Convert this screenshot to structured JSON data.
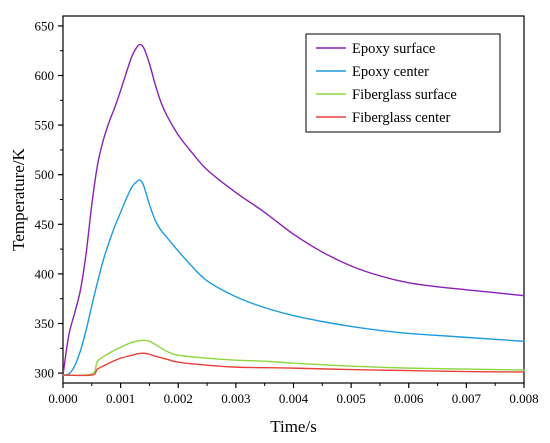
{
  "chart_data": {
    "type": "line",
    "title": "",
    "xlabel": "Time/s",
    "ylabel": "Temperature/K",
    "xlim": [
      0,
      0.008
    ],
    "ylim": [
      290,
      660
    ],
    "grid": false,
    "legend_position": "top-right",
    "x_ticks": [
      {
        "value": 0,
        "label": "0.000"
      },
      {
        "value": 0.001,
        "label": "0.001"
      },
      {
        "value": 0.002,
        "label": "0.002"
      },
      {
        "value": 0.003,
        "label": "0.003"
      },
      {
        "value": 0.004,
        "label": "0.004"
      },
      {
        "value": 0.005,
        "label": "0.005"
      },
      {
        "value": 0.006,
        "label": "0.006"
      },
      {
        "value": 0.007,
        "label": "0.007"
      },
      {
        "value": 0.008,
        "label": "0.008"
      }
    ],
    "y_ticks": [
      {
        "value": 300,
        "label": "300"
      },
      {
        "value": 350,
        "label": "350"
      },
      {
        "value": 400,
        "label": "400"
      },
      {
        "value": 450,
        "label": "450"
      },
      {
        "value": 500,
        "label": "500"
      },
      {
        "value": 550,
        "label": "550"
      },
      {
        "value": 600,
        "label": "600"
      },
      {
        "value": 650,
        "label": "650"
      }
    ],
    "series": [
      {
        "name": "Epoxy surface",
        "color": "#8B1FB8",
        "x": [
          0,
          0.0001,
          0.0002,
          0.0003,
          0.0004,
          0.0005,
          0.0006,
          0.0007,
          0.0008,
          0.0009,
          0.001,
          0.0011,
          0.0012,
          0.0013,
          0.00135,
          0.0014,
          0.0015,
          0.0016,
          0.0017,
          0.0018,
          0.002,
          0.0022,
          0.0025,
          0.003,
          0.0035,
          0.004,
          0.0045,
          0.005,
          0.0055,
          0.006,
          0.0065,
          0.007,
          0.0075,
          0.008
        ],
        "y": [
          298,
          338,
          360,
          383,
          420,
          470,
          510,
          535,
          553,
          568,
          585,
          603,
          620,
          630,
          631,
          628,
          612,
          591,
          573,
          560,
          540,
          525,
          505,
          482,
          462,
          440,
          422,
          408,
          398,
          391,
          387,
          384,
          381,
          378
        ]
      },
      {
        "name": "Epoxy center",
        "color": "#1E9BE0",
        "x": [
          0,
          0.0001,
          0.0002,
          0.0003,
          0.0004,
          0.0005,
          0.0006,
          0.0007,
          0.0008,
          0.0009,
          0.001,
          0.0011,
          0.0012,
          0.0013,
          0.00135,
          0.0014,
          0.0015,
          0.0016,
          0.0017,
          0.0018,
          0.002,
          0.0022,
          0.0025,
          0.003,
          0.0035,
          0.004,
          0.0045,
          0.005,
          0.0055,
          0.006,
          0.0065,
          0.007,
          0.0075,
          0.008
        ],
        "y": [
          298,
          299,
          307,
          322,
          343,
          368,
          392,
          414,
          432,
          448,
          462,
          476,
          488,
          494,
          494,
          489,
          470,
          454,
          444,
          437,
          423,
          410,
          393,
          377,
          366,
          358,
          352,
          347,
          343,
          340,
          338,
          336,
          334,
          332
        ]
      },
      {
        "name": "Fiberglass surface",
        "color": "#8ED63F",
        "x": [
          0,
          0.0005,
          0.0006,
          0.0008,
          0.001,
          0.0012,
          0.0014,
          0.0015,
          0.0016,
          0.0018,
          0.002,
          0.0025,
          0.003,
          0.0035,
          0.004,
          0.005,
          0.006,
          0.007,
          0.008
        ],
        "y": [
          298,
          299,
          312,
          320,
          326,
          331,
          333,
          332,
          329,
          322,
          318,
          315,
          313,
          312,
          310,
          307,
          305,
          304,
          303
        ]
      },
      {
        "name": "Fiberglass center",
        "color": "#E8413A",
        "x": [
          0,
          0.0005,
          0.0006,
          0.0008,
          0.001,
          0.0012,
          0.0013,
          0.0014,
          0.0015,
          0.0016,
          0.0018,
          0.002,
          0.0025,
          0.003,
          0.004,
          0.005,
          0.006,
          0.007,
          0.008
        ],
        "y": [
          298,
          298,
          304,
          310,
          315,
          318,
          319.5,
          320,
          319,
          317,
          314,
          311,
          308,
          306,
          305,
          303.5,
          302.5,
          301.5,
          301
        ]
      }
    ]
  }
}
